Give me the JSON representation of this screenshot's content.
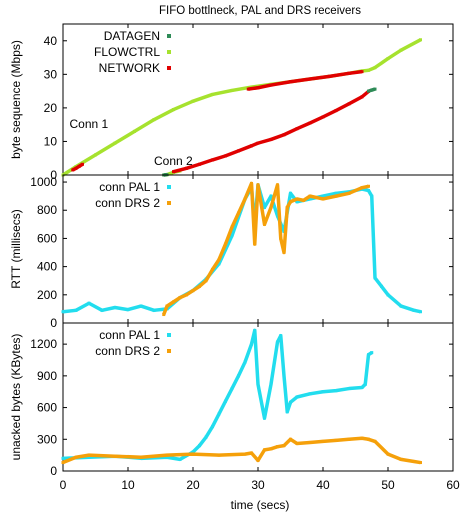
{
  "figure": {
    "title": "FIFO bottlneck, PAL and DRS receivers",
    "shared_xlabel": "time (secs)",
    "x_ticks": [
      0,
      10,
      20,
      30,
      40,
      50,
      60
    ],
    "xlim": [
      0,
      60
    ]
  },
  "colors": {
    "datagen": "#2e8b57",
    "flowctrl": "#a6e22e",
    "network": "#e00000",
    "pal": "#22ddee",
    "drs": "#f5a00a"
  },
  "chart_data": [
    {
      "type": "scatter",
      "panel": "byte sequence",
      "ylabel": "byte sequence (Mbps)",
      "xlim": [
        0,
        60
      ],
      "ylim": [
        0,
        45
      ],
      "y_ticks": [
        0,
        10,
        20,
        30,
        40
      ],
      "legend": [
        "DATAGEN",
        "FLOWCTRL",
        "NETWORK"
      ],
      "legend_position": "top-left",
      "annotations": [
        "Conn 1",
        "Conn 2"
      ],
      "series": [
        {
          "name": "FLOWCTRL",
          "color_key": "flowctrl",
          "x": [
            0,
            2,
            5,
            8,
            11,
            14,
            17,
            20,
            23,
            26,
            29,
            32,
            35,
            38,
            41,
            44,
            46,
            47,
            48,
            50,
            52,
            55
          ],
          "y": [
            0,
            2.5,
            6,
            9.5,
            13,
            16.5,
            19.5,
            22,
            24,
            25.2,
            26.2,
            27,
            27.8,
            28.6,
            29.4,
            30.3,
            31,
            31.2,
            32,
            34.7,
            37.2,
            40.3
          ]
        },
        {
          "name": "NETWORK",
          "color_key": "network",
          "x": [
            1.5,
            2,
            2.5,
            3
          ],
          "y": [
            1.5,
            2,
            2.6,
            3.2
          ]
        },
        {
          "name": "NETWORK",
          "color_key": "network",
          "x": [
            28.5,
            30,
            32,
            35,
            38,
            41,
            44,
            46
          ],
          "y": [
            25.6,
            26,
            26.8,
            27.8,
            28.6,
            29.4,
            30.3,
            30.8
          ]
        },
        {
          "name": "FLOWCTRL",
          "color_key": "flowctrl",
          "x": [
            15.5,
            16,
            17,
            18
          ],
          "y": [
            0,
            0.1,
            0.8,
            1.2
          ]
        },
        {
          "name": "NETWORK",
          "color_key": "network",
          "x": [
            17,
            19,
            21,
            23,
            25,
            27,
            29,
            30,
            32,
            34,
            36,
            38,
            40,
            42,
            44,
            46,
            47
          ],
          "y": [
            1,
            2,
            3.2,
            4.5,
            5.7,
            7.2,
            8.7,
            9.5,
            10.6,
            12,
            13.8,
            15.5,
            17.3,
            19.2,
            21.2,
            23.3,
            24.9
          ]
        },
        {
          "name": "DATAGEN",
          "color_key": "datagen",
          "x": [
            47,
            47.5,
            48
          ],
          "y": [
            25,
            25.3,
            25.6
          ]
        },
        {
          "name": "DATAGEN",
          "color_key": "datagen",
          "x": [
            15.5,
            16
          ],
          "y": [
            0,
            0.1
          ]
        }
      ]
    },
    {
      "type": "scatter",
      "panel": "RTT",
      "ylabel": "RTT (millisecs)",
      "xlim": [
        0,
        60
      ],
      "ylim": [
        0,
        1050
      ],
      "y_ticks": [
        0,
        200,
        400,
        600,
        800,
        1000
      ],
      "legend": [
        "conn PAL 1",
        "conn DRS 2"
      ],
      "legend_position": "top-left",
      "series": [
        {
          "name": "conn PAL 1",
          "color_key": "pal",
          "x": [
            0,
            2,
            4,
            6,
            8,
            10,
            12,
            14,
            16,
            18,
            20,
            22,
            24,
            26,
            28,
            29,
            29.5,
            30,
            31,
            32,
            33,
            34,
            35,
            36,
            38,
            40,
            42,
            44,
            46,
            47,
            47.5,
            48,
            49,
            50,
            52,
            54,
            55
          ],
          "y": [
            80,
            90,
            140,
            90,
            110,
            95,
            120,
            90,
            100,
            180,
            230,
            310,
            420,
            620,
            880,
            960,
            700,
            980,
            820,
            900,
            760,
            650,
            920,
            860,
            880,
            900,
            920,
            930,
            950,
            940,
            900,
            320,
            260,
            200,
            120,
            90,
            80
          ]
        },
        {
          "name": "conn DRS 2",
          "color_key": "drs",
          "x": [
            15.5,
            16,
            17,
            18,
            19,
            20,
            21,
            22,
            23,
            24,
            25,
            26,
            27,
            28,
            29,
            29.5,
            30,
            31,
            32,
            33,
            33.5,
            34,
            34.5,
            35,
            36,
            37,
            38,
            40,
            42,
            44,
            46,
            47
          ],
          "y": [
            60,
            120,
            150,
            180,
            200,
            230,
            260,
            300,
            380,
            450,
            560,
            680,
            780,
            880,
            990,
            560,
            980,
            700,
            820,
            980,
            600,
            500,
            820,
            860,
            880,
            870,
            900,
            880,
            900,
            920,
            960,
            970
          ]
        }
      ]
    },
    {
      "type": "scatter",
      "panel": "unacked bytes",
      "ylabel": "unacked bytes (KBytes)",
      "xlim": [
        0,
        60
      ],
      "ylim": [
        0,
        1400
      ],
      "y_ticks": [
        0,
        300,
        600,
        900,
        1200
      ],
      "legend": [
        "conn PAL 1",
        "conn DRS 2"
      ],
      "legend_position": "top-left",
      "series": [
        {
          "name": "conn PAL 1",
          "color_key": "pal",
          "x": [
            0,
            4,
            8,
            12,
            16,
            18,
            20,
            21,
            22,
            23,
            24,
            25,
            26,
            27,
            28,
            29,
            29.5,
            30,
            31,
            32,
            33,
            33.5,
            34,
            34.5,
            35,
            36,
            38,
            40,
            42,
            44,
            46,
            46.5,
            47,
            47.5
          ],
          "y": [
            120,
            130,
            140,
            120,
            130,
            110,
            180,
            240,
            320,
            420,
            540,
            660,
            780,
            900,
            1030,
            1200,
            1330,
            820,
            500,
            820,
            1220,
            1280,
            900,
            560,
            650,
            700,
            730,
            750,
            760,
            780,
            790,
            820,
            1100,
            1120
          ]
        },
        {
          "name": "conn DRS 2",
          "color_key": "drs",
          "x": [
            0,
            2,
            4,
            8,
            12,
            16,
            20,
            24,
            28,
            29,
            30,
            31,
            32,
            33,
            34,
            35,
            36,
            38,
            40,
            42,
            44,
            46,
            47,
            48,
            50,
            52,
            54,
            55
          ],
          "y": [
            80,
            130,
            150,
            140,
            130,
            150,
            160,
            150,
            160,
            170,
            100,
            200,
            210,
            230,
            240,
            300,
            260,
            270,
            280,
            290,
            300,
            310,
            300,
            280,
            160,
            110,
            90,
            80
          ]
        }
      ]
    }
  ]
}
